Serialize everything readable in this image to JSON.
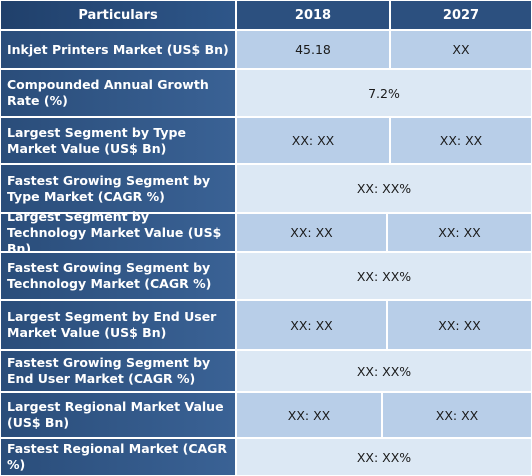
{
  "table": {
    "headers": [
      "Particulars",
      "2018",
      "2027"
    ],
    "rows": [
      {
        "label": "Inkjet Printers Market (US$ Bn)",
        "v2018": "45.18",
        "v2027": "XX"
      },
      {
        "label": "Compounded Annual Growth Rate (%)",
        "merged": "7.2%"
      },
      {
        "label": "Largest Segment by Type Market Value (US$ Bn)",
        "v2018": "XX: XX",
        "v2027": "XX: XX"
      },
      {
        "label": "Fastest Growing Segment by Type Market (CAGR %)",
        "merged": "XX: XX%"
      },
      {
        "label": "Largest Segment by Technology Market Value (US$ Bn)",
        "v2018": "XX: XX",
        "v2027": "XX: XX"
      },
      {
        "label": "Fastest Growing Segment by Technology Market (CAGR %)",
        "merged": "XX: XX%"
      },
      {
        "label": "Largest Segment by End User Market Value (US$ Bn)",
        "v2018": "XX: XX",
        "v2027": "XX: XX"
      },
      {
        "label": "Fastest Growing Segment by End User Market (CAGR %)",
        "merged": "XX: XX%"
      },
      {
        "label": "Largest Regional Market Value (US$ Bn)",
        "v2018": "XX: XX",
        "v2027": "XX: XX"
      },
      {
        "label": "Fastest Regional Market (CAGR %)",
        "merged": "XX: XX%"
      }
    ]
  }
}
